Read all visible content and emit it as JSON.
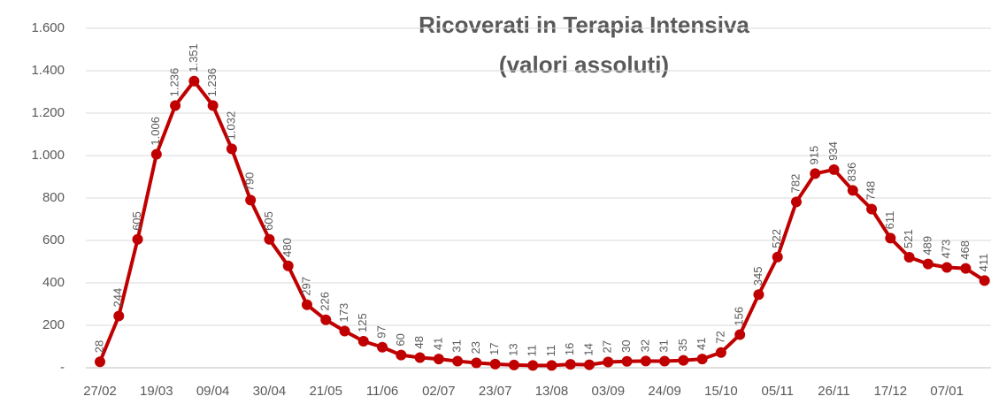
{
  "chart_data": {
    "type": "line",
    "title": "Ricoverati in Terapia Intensiva",
    "subtitle": "(valori assoluti)",
    "categories": [
      "27/02",
      null,
      null,
      "19/03",
      null,
      null,
      "09/04",
      null,
      null,
      "30/04",
      null,
      null,
      "21/05",
      null,
      null,
      "11/06",
      null,
      null,
      "02/07",
      null,
      null,
      "23/07",
      null,
      null,
      "13/08",
      null,
      null,
      "03/09",
      null,
      null,
      "24/09",
      null,
      null,
      "15/10",
      null,
      null,
      "05/11",
      null,
      null,
      "26/11",
      null,
      null,
      "17/12",
      null,
      null,
      "07/01",
      null,
      null
    ],
    "series": [
      {
        "name": "Ricoverati in Terapia Intensiva",
        "color": "#c00000",
        "values": [
          28,
          244,
          605,
          1006,
          1236,
          1351,
          1236,
          1032,
          790,
          605,
          480,
          297,
          226,
          173,
          125,
          97,
          60,
          48,
          41,
          31,
          23,
          17,
          13,
          11,
          11,
          16,
          14,
          27,
          30,
          32,
          31,
          35,
          41,
          72,
          156,
          345,
          522,
          782,
          915,
          934,
          836,
          748,
          611,
          521,
          489,
          473,
          468,
          411
        ],
        "value_labels": [
          "28",
          "244",
          "605",
          "1.006",
          "1.236",
          "1.351",
          "1.236",
          "1.032",
          "790",
          "605",
          "480",
          "297",
          "226",
          "173",
          "125",
          "97",
          "60",
          "48",
          "41",
          "31",
          "23",
          "17",
          "13",
          "11",
          "11",
          "16",
          "14",
          "27",
          "30",
          "32",
          "31",
          "35",
          "41",
          "72",
          "156",
          "345",
          "522",
          "782",
          "915",
          "934",
          "836",
          "748",
          "611",
          "521",
          "489",
          "473",
          "468",
          "411"
        ]
      }
    ],
    "ylim": [
      0,
      1600
    ],
    "yticks": [
      {
        "value": 0,
        "label": "-"
      },
      200,
      400,
      600,
      800,
      {
        "value": 1000,
        "label": "1.000"
      },
      {
        "value": 1200,
        "label": "1.200"
      },
      {
        "value": 1400,
        "label": "1.400"
      },
      {
        "value": 1600,
        "label": "1.600"
      }
    ],
    "grid": true
  }
}
